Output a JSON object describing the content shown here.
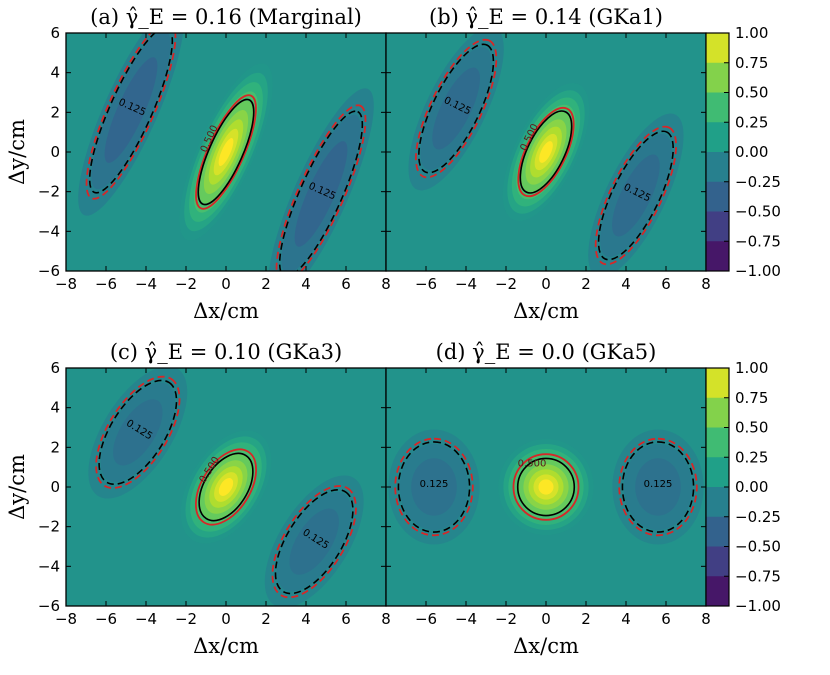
{
  "chart_data": {
    "type": "heatmap",
    "colormap": "viridis",
    "colorbar": {
      "range": [
        -1.0,
        1.0
      ],
      "tick_labels": [
        "1.00",
        "0.75",
        "0.50",
        "0.25",
        "0.00",
        "−0.25",
        "−0.50",
        "−0.75",
        "−1.00"
      ]
    },
    "xlabel": "Δx/cm",
    "ylabel": "Δy/cm",
    "xlim": [
      -8,
      8
    ],
    "ylim": [
      -6,
      6
    ],
    "x_tick_labels": [
      "−8",
      "−6",
      "−4",
      "−2",
      "0",
      "2",
      "4",
      "6",
      "8"
    ],
    "y_tick_labels": [
      "6",
      "4",
      "2",
      "0",
      "−2",
      "−4",
      "−6"
    ],
    "contour_levels": [
      0.125,
      0.5
    ],
    "contour_labels": [
      "0.500",
      "0.125"
    ],
    "contour_series": [
      {
        "color": "#000000",
        "style": "solid/dashed"
      },
      {
        "color": "#d62728",
        "style": "solid/dashed"
      }
    ],
    "panels": [
      {
        "title": "(a) γ̂_E = 0.16 (Marginal)",
        "tilt_deg": 66,
        "major_cm": 4.6,
        "minor_cm": 1.35,
        "side_offset_cm": 5.2,
        "side_lobe_amp": -0.35,
        "red_scale": 1.08
      },
      {
        "title": "(b) γ̂_E = 0.14 (GKa1)",
        "tilt_deg": 64,
        "major_cm": 3.6,
        "minor_cm": 1.5,
        "side_offset_cm": 5.0,
        "side_lobe_amp": -0.3,
        "red_scale": 1.08
      },
      {
        "title": "(c) γ̂_E = 0.10 (GKa3)",
        "tilt_deg": 58,
        "major_cm": 3.0,
        "minor_cm": 1.75,
        "side_offset_cm": 5.2,
        "side_lobe_amp": -0.26,
        "red_scale": 1.12
      },
      {
        "title": "(d) γ̂_E = 0.0 (GKa5)",
        "tilt_deg": 90,
        "major_cm": 2.3,
        "minor_cm": 2.3,
        "side_offset_cm": 5.6,
        "side_lobe_amp": -0.25,
        "red_scale": 1.15
      }
    ]
  }
}
